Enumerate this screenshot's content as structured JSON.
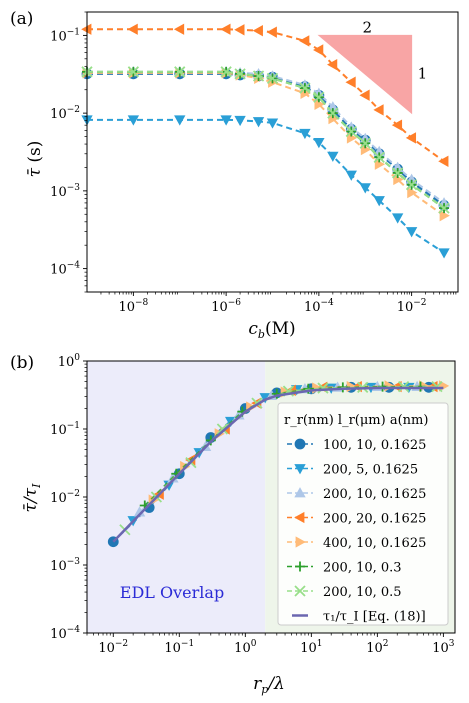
{
  "chart_data": [
    {
      "type": "line",
      "panel_label": "(a)",
      "xlabel": "c_b(M)",
      "ylabel": "τ̄ (s)",
      "x_scale": "log",
      "y_scale": "log",
      "xlim": [
        1e-09,
        0.1
      ],
      "ylim": [
        5e-05,
        0.2
      ],
      "x_ticks": [
        {
          "value": 1e-08,
          "base": "10",
          "exp": "−8"
        },
        {
          "value": 1e-06,
          "base": "10",
          "exp": "−6"
        },
        {
          "value": 0.0001,
          "base": "10",
          "exp": "−4"
        },
        {
          "value": 0.01,
          "base": "10",
          "exp": "−2"
        }
      ],
      "y_ticks": [
        {
          "value": 0.0001,
          "base": "10",
          "exp": "−4"
        },
        {
          "value": 0.001,
          "base": "10",
          "exp": "−3"
        },
        {
          "value": 0.01,
          "base": "10",
          "exp": "−2"
        },
        {
          "value": 0.1,
          "base": "10",
          "exp": "−1"
        }
      ],
      "slope_triangle": {
        "top_label": "2",
        "side_label": "1",
        "color": "#f8a5a5"
      },
      "x": [
        1e-09,
        1e-08,
        1e-07,
        1e-06,
        2e-06,
        5e-06,
        1e-05,
        5e-05,
        0.0001,
        0.0002,
        0.0005,
        0.001,
        0.002,
        0.005,
        0.01,
        0.05
      ],
      "series": [
        {
          "color": "#2077b4",
          "marker": "circle",
          "values": [
            0.032,
            0.032,
            0.032,
            0.032,
            0.031,
            0.03,
            0.029,
            0.022,
            0.017,
            0.011,
            0.0062,
            0.0045,
            0.003,
            0.0019,
            0.0013,
            0.00065
          ]
        },
        {
          "color": "#2a9fd6",
          "marker": "triangle-down",
          "values": [
            0.0082,
            0.0082,
            0.0082,
            0.0082,
            0.0081,
            0.0078,
            0.0075,
            0.0055,
            0.0042,
            0.0028,
            0.0016,
            0.0011,
            0.00075,
            0.00045,
            0.0003,
            0.00016
          ]
        },
        {
          "color": "#aec7e8",
          "marker": "triangle-up",
          "values": [
            0.034,
            0.034,
            0.034,
            0.034,
            0.033,
            0.032,
            0.03,
            0.023,
            0.018,
            0.012,
            0.0066,
            0.0047,
            0.0032,
            0.002,
            0.0014,
            0.0007
          ]
        },
        {
          "color": "#ff7f2a",
          "marker": "triangle-left",
          "values": [
            0.12,
            0.12,
            0.12,
            0.12,
            0.118,
            0.115,
            0.11,
            0.085,
            0.065,
            0.042,
            0.025,
            0.017,
            0.011,
            0.007,
            0.0048,
            0.0024
          ]
        },
        {
          "color": "#ffbb78",
          "marker": "triangle-right",
          "values": [
            0.033,
            0.033,
            0.033,
            0.033,
            0.031,
            0.028,
            0.025,
            0.018,
            0.013,
            0.0085,
            0.0048,
            0.0034,
            0.0022,
            0.0014,
            0.00095,
            0.00048
          ]
        },
        {
          "color": "#2ca02c",
          "marker": "plus",
          "values": [
            0.034,
            0.034,
            0.034,
            0.034,
            0.032,
            0.03,
            0.028,
            0.021,
            0.016,
            0.01,
            0.0058,
            0.0041,
            0.0027,
            0.0017,
            0.0012,
            0.0006
          ]
        },
        {
          "color": "#98df8a",
          "marker": "x",
          "values": [
            0.034,
            0.034,
            0.034,
            0.034,
            0.032,
            0.03,
            0.028,
            0.021,
            0.016,
            0.01,
            0.0058,
            0.0041,
            0.0027,
            0.0017,
            0.0012,
            0.0006
          ]
        }
      ]
    },
    {
      "type": "line",
      "panel_label": "(b)",
      "xlabel": "r_p/λ",
      "ylabel": "τ̄/τ_I",
      "x_scale": "log",
      "y_scale": "log",
      "xlim": [
        0.004,
        1500
      ],
      "ylim": [
        0.0001,
        1
      ],
      "x_ticks": [
        {
          "value": 0.01,
          "base": "10",
          "exp": "−2"
        },
        {
          "value": 0.1,
          "base": "10",
          "exp": "−1"
        },
        {
          "value": 1,
          "base": "10",
          "exp": "0"
        },
        {
          "value": 10,
          "base": "10",
          "exp": "1"
        },
        {
          "value": 100,
          "base": "10",
          "exp": "2"
        },
        {
          "value": 1000,
          "base": "10",
          "exp": "3"
        }
      ],
      "y_ticks": [
        {
          "value": 0.0001,
          "base": "10",
          "exp": "−4"
        },
        {
          "value": 0.001,
          "base": "10",
          "exp": "−3"
        },
        {
          "value": 0.01,
          "base": "10",
          "exp": "−2"
        },
        {
          "value": 0.1,
          "base": "10",
          "exp": "−1"
        },
        {
          "value": 1,
          "base": "10",
          "exp": "0"
        }
      ],
      "regions": [
        {
          "from": 0.004,
          "to": 2,
          "color": "#ececfa",
          "label": "EDL Overlap",
          "label_color": "#2b2bd6"
        },
        {
          "from": 2,
          "to": 1500,
          "color": "#eef5ea",
          "label": "",
          "label_color": ""
        }
      ],
      "legend_position": "lower-right",
      "legend_header": {
        "c1": "r_r(nm)",
        "c2": "l_r(μm)",
        "c3": "a(nm)"
      },
      "series": [
        {
          "name": "100, 10, 0.1625",
          "color": "#2077b4",
          "marker": "circle",
          "x": [
            0.01,
            0.035,
            0.1,
            0.3,
            1,
            3,
            10,
            40,
            150,
            600
          ],
          "values": [
            0.0022,
            0.007,
            0.022,
            0.075,
            0.2,
            0.34,
            0.39,
            0.41,
            0.41,
            0.41
          ]
        },
        {
          "name": "200, 5, 0.1625",
          "color": "#2a9fd6",
          "marker": "triangle-down",
          "x": [
            0.02,
            0.07,
            0.2,
            0.6,
            2,
            6,
            20,
            80,
            300
          ],
          "values": [
            0.0045,
            0.015,
            0.045,
            0.13,
            0.29,
            0.38,
            0.4,
            0.41,
            0.41
          ]
        },
        {
          "name": "200, 10, 0.1625",
          "color": "#aec7e8",
          "marker": "triangle-up",
          "x": [
            0.025,
            0.08,
            0.25,
            0.8,
            2.5,
            8,
            25,
            100,
            400
          ],
          "values": [
            0.006,
            0.019,
            0.055,
            0.16,
            0.31,
            0.39,
            0.41,
            0.42,
            0.42
          ]
        },
        {
          "name": "200, 20, 0.1625",
          "color": "#ff7f2a",
          "marker": "triangle-left",
          "x": [
            0.05,
            0.15,
            0.5,
            1.5,
            5,
            15,
            50,
            200,
            700
          ],
          "values": [
            0.011,
            0.035,
            0.1,
            0.24,
            0.37,
            0.41,
            0.42,
            0.42,
            0.42
          ]
        },
        {
          "name": "400, 10, 0.1625",
          "color": "#ffbb78",
          "marker": "triangle-right",
          "x": [
            0.04,
            0.12,
            0.4,
            1.2,
            4,
            12,
            40,
            150,
            500,
            1000
          ],
          "values": [
            0.009,
            0.028,
            0.085,
            0.21,
            0.35,
            0.4,
            0.42,
            0.43,
            0.43,
            0.43
          ]
        },
        {
          "name": "200, 10, 0.3",
          "color": "#2ca02c",
          "marker": "plus",
          "x": [
            0.03,
            0.09,
            0.3,
            0.9,
            3,
            9,
            30,
            120,
            450
          ],
          "values": [
            0.0075,
            0.022,
            0.068,
            0.18,
            0.33,
            0.39,
            0.41,
            0.42,
            0.42
          ]
        },
        {
          "name": "200, 10, 0.5",
          "color": "#98df8a",
          "marker": "x",
          "x": [
            0.015,
            0.045,
            0.15,
            0.45,
            1.5,
            4.5,
            15,
            60,
            250,
            800
          ],
          "values": [
            0.0033,
            0.01,
            0.032,
            0.1,
            0.24,
            0.36,
            0.4,
            0.41,
            0.42,
            0.42
          ]
        },
        {
          "name": "τ₁/τ_I [Eq. (18)]",
          "color": "#6b67b0",
          "marker": "line",
          "x": [
            0.01,
            0.03,
            0.1,
            0.3,
            1,
            2,
            3,
            10,
            30,
            100,
            300,
            1000
          ],
          "values": [
            0.0022,
            0.0066,
            0.022,
            0.065,
            0.18,
            0.27,
            0.31,
            0.37,
            0.39,
            0.4,
            0.4,
            0.4
          ]
        }
      ]
    }
  ]
}
